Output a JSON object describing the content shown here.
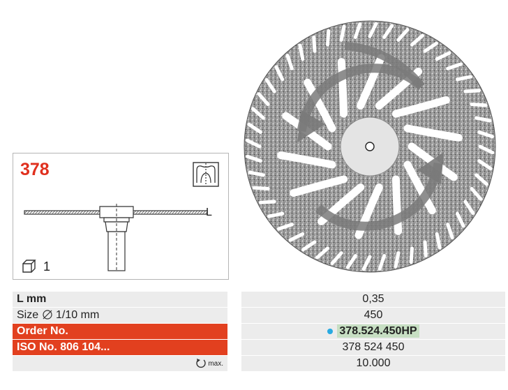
{
  "card": {
    "product_no": "378",
    "profile_label": "L",
    "pack_qty": "1",
    "icons": [
      "tooth-profile-icon",
      "package-icon"
    ]
  },
  "specs": {
    "l_label": "L mm",
    "l_value": "0,35",
    "size_label": "Size",
    "size_unit": "1/10 mm",
    "size_value": "450",
    "order_label": "Order No.",
    "order_value": "378.524.450HP",
    "iso_label": "ISO No. 806 104...",
    "iso_value": "378 524 450",
    "rpm_sub": "max.",
    "rpm_value": "10.000"
  },
  "colors": {
    "accent_red": "#e2401f",
    "product_red": "#e0301e",
    "dot_blue": "#29aae1",
    "highlight_green": "#c7dfc3",
    "row_grey": "#ececec"
  }
}
